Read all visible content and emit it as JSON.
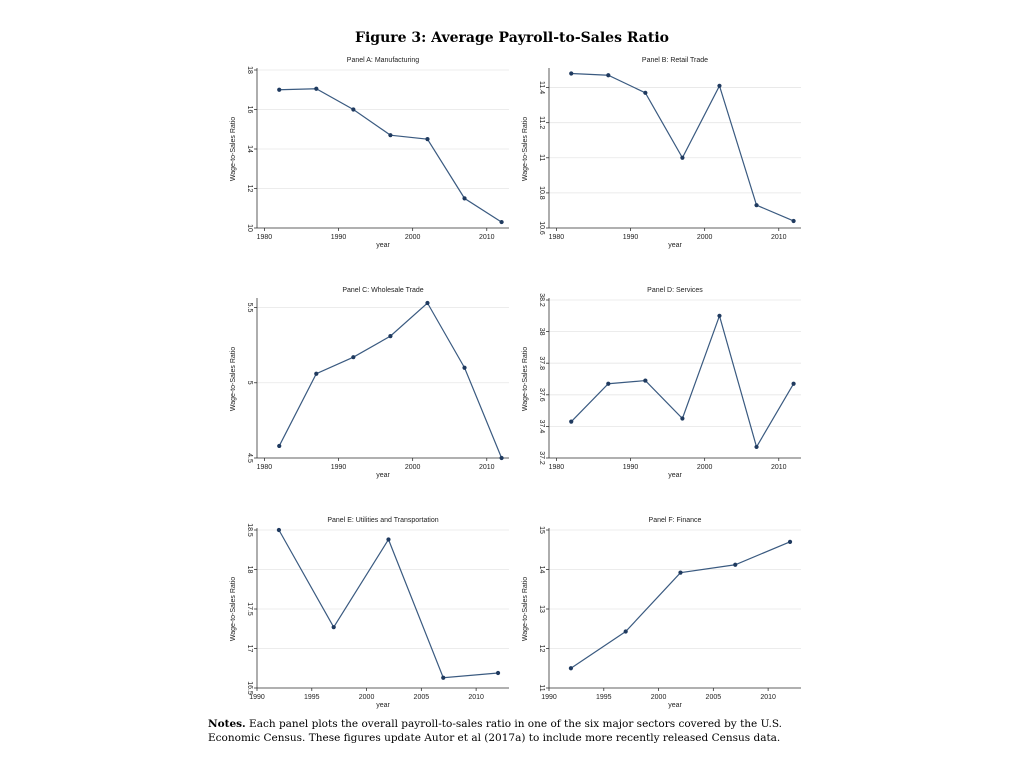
{
  "figure": {
    "title": "Figure 3:  Average Payroll-to-Sales Ratio",
    "notes_label": "Notes.",
    "notes_text": " Each panel plots the overall payroll-to-sales ratio in one of the six major sectors covered by the U.S. Economic Census.  These figures update Autor et al (2017a) to include more recently released Census data."
  },
  "colors": {
    "line": "#3a5a80",
    "point": "#1f3a5f",
    "grid": "#e6e6e6"
  },
  "chart_data": [
    {
      "type": "line",
      "title": "Panel A: Manufacturing",
      "xlabel": "year",
      "ylabel": "Wage-to-Sales Ratio",
      "xlim": [
        1979,
        2013
      ],
      "ylim": [
        10,
        18
      ],
      "xticks": [
        1980,
        1990,
        2000,
        2010
      ],
      "yticks": [
        10,
        12,
        14,
        16,
        18
      ],
      "ytick_labels": [
        "10",
        "12",
        "14",
        "16",
        "18"
      ],
      "grid": true,
      "series": [
        {
          "x": [
            1982,
            1987,
            1992,
            1997,
            2002,
            2007,
            2012
          ],
          "y": [
            17.0,
            17.05,
            16.0,
            14.7,
            14.5,
            11.5,
            10.3
          ]
        }
      ]
    },
    {
      "type": "line",
      "title": "Panel B: Retail Trade",
      "xlabel": "year",
      "ylabel": "Wage-to-Sales Ratio",
      "xlim": [
        1979,
        2013
      ],
      "ylim": [
        10.6,
        11.5
      ],
      "xticks": [
        1980,
        1990,
        2000,
        2010
      ],
      "yticks": [
        10.6,
        10.8,
        11.0,
        11.2,
        11.4
      ],
      "ytick_labels": [
        "10.6",
        "10.8",
        "11",
        "11.2",
        "11.4"
      ],
      "grid": true,
      "series": [
        {
          "x": [
            1982,
            1987,
            1992,
            1997,
            2002,
            2007,
            2012
          ],
          "y": [
            11.48,
            11.47,
            11.37,
            11.0,
            11.41,
            10.73,
            10.64
          ]
        }
      ]
    },
    {
      "type": "line",
      "title": "Panel C: Wholesale Trade",
      "xlabel": "year",
      "ylabel": "Wage-to-Sales Ratio",
      "xlim": [
        1979,
        2013
      ],
      "ylim": [
        4.5,
        5.55
      ],
      "xticks": [
        1980,
        1990,
        2000,
        2010
      ],
      "yticks": [
        4.5,
        5.0,
        5.5
      ],
      "ytick_labels": [
        "4.5",
        "5",
        "5.5"
      ],
      "grid": true,
      "series": [
        {
          "x": [
            1982,
            1987,
            1992,
            1997,
            2002,
            2007,
            2012
          ],
          "y": [
            4.58,
            5.06,
            5.17,
            5.31,
            5.53,
            5.1,
            4.5
          ]
        }
      ]
    },
    {
      "type": "line",
      "title": "Panel D: Services",
      "xlabel": "year",
      "ylabel": "Wage-to-Sales Ratio",
      "xlim": [
        1979,
        2013
      ],
      "ylim": [
        37.2,
        38.2
      ],
      "xticks": [
        1980,
        1990,
        2000,
        2010
      ],
      "yticks": [
        37.2,
        37.4,
        37.6,
        37.8,
        38.0,
        38.2
      ],
      "ytick_labels": [
        "37.2",
        "37.4",
        "37.6",
        "37.8",
        "38",
        "38.2"
      ],
      "grid": true,
      "series": [
        {
          "x": [
            1982,
            1987,
            1992,
            1997,
            2002,
            2007,
            2012
          ],
          "y": [
            37.43,
            37.67,
            37.69,
            37.45,
            38.1,
            37.27,
            37.67
          ]
        }
      ]
    },
    {
      "type": "line",
      "title": "Panel E: Utilities and Transportation",
      "xlabel": "year",
      "ylabel": "Wage-to-Sales Ratio",
      "xlim": [
        1990,
        2013
      ],
      "ylim": [
        16.5,
        18.5
      ],
      "xticks": [
        1990,
        1995,
        2000,
        2005,
        2010
      ],
      "yticks": [
        16.5,
        17.0,
        17.5,
        18.0,
        18.5
      ],
      "ytick_labels": [
        "16.5",
        "17",
        "17.5",
        "18",
        "18.5"
      ],
      "grid": true,
      "series": [
        {
          "x": [
            1992,
            1997,
            2002,
            2007,
            2012
          ],
          "y": [
            18.5,
            17.27,
            18.38,
            16.63,
            16.69
          ]
        }
      ]
    },
    {
      "type": "line",
      "title": "Panel F: Finance",
      "xlabel": "year",
      "ylabel": "Wage-to-Sales Ratio",
      "xlim": [
        1990,
        2013
      ],
      "ylim": [
        11,
        15
      ],
      "xticks": [
        1990,
        1995,
        2000,
        2005,
        2010
      ],
      "yticks": [
        11,
        12,
        13,
        14,
        15
      ],
      "ytick_labels": [
        "11",
        "12",
        "13",
        "14",
        "15"
      ],
      "grid": true,
      "series": [
        {
          "x": [
            1992,
            1997,
            2002,
            2007,
            2012
          ],
          "y": [
            11.5,
            12.43,
            13.92,
            14.12,
            14.7
          ]
        }
      ]
    }
  ]
}
